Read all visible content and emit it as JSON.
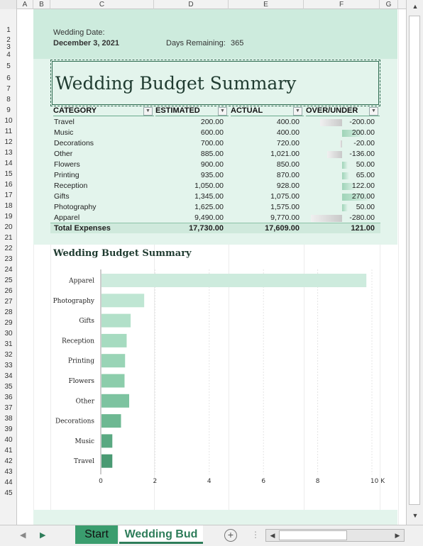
{
  "columns": [
    "A",
    "B",
    "C",
    "D",
    "E",
    "F",
    "G"
  ],
  "rows": [
    "1",
    "2",
    "3",
    "4",
    "5",
    "6",
    "7",
    "8",
    "9",
    "10",
    "11",
    "12",
    "13",
    "14",
    "15",
    "16",
    "17",
    "18",
    "19",
    "20",
    "21",
    "22",
    "23",
    "24",
    "25",
    "26",
    "27",
    "28",
    "29",
    "30",
    "31",
    "32",
    "33",
    "34",
    "35",
    "36",
    "37",
    "38",
    "39",
    "40",
    "41",
    "42",
    "43",
    "44",
    "45"
  ],
  "header": {
    "wedding_date_label": "Wedding Date:",
    "wedding_date": "December 3, 2021",
    "days_remaining_label": "Days Remaining:",
    "days_remaining": "365"
  },
  "title": "Wedding Budget Summary",
  "table": {
    "headers": [
      "CATEGORY",
      "ESTIMATED",
      "ACTUAL",
      "OVER/UNDER"
    ],
    "rows": [
      {
        "category": "Travel",
        "estimated": "200.00",
        "actual": "400.00",
        "over_under": "-200.00"
      },
      {
        "category": "Music",
        "estimated": "600.00",
        "actual": "400.00",
        "over_under": "200.00"
      },
      {
        "category": "Decorations",
        "estimated": "700.00",
        "actual": "720.00",
        "over_under": "-20.00"
      },
      {
        "category": "Other",
        "estimated": "885.00",
        "actual": "1,021.00",
        "over_under": "-136.00"
      },
      {
        "category": "Flowers",
        "estimated": "900.00",
        "actual": "850.00",
        "over_under": "50.00"
      },
      {
        "category": "Printing",
        "estimated": "935.00",
        "actual": "870.00",
        "over_under": "65.00"
      },
      {
        "category": "Reception",
        "estimated": "1,050.00",
        "actual": "928.00",
        "over_under": "122.00"
      },
      {
        "category": "Gifts",
        "estimated": "1,345.00",
        "actual": "1,075.00",
        "over_under": "270.00"
      },
      {
        "category": "Photography",
        "estimated": "1,625.00",
        "actual": "1,575.00",
        "over_under": "50.00"
      },
      {
        "category": "Apparel",
        "estimated": "9,490.00",
        "actual": "9,770.00",
        "over_under": "-280.00"
      }
    ],
    "total": {
      "label": "Total Expenses",
      "estimated": "17,730.00",
      "actual": "17,609.00",
      "over_under": "121.00"
    }
  },
  "chart_title": "Wedding Budget Summary",
  "chart_data": {
    "type": "bar",
    "orientation": "horizontal",
    "title": "Wedding Budget Summary",
    "categories": [
      "Apparel",
      "Photography",
      "Gifts",
      "Reception",
      "Printing",
      "Flowers",
      "Other",
      "Decorations",
      "Music",
      "Travel"
    ],
    "values": [
      9.77,
      1.575,
      1.075,
      0.928,
      0.87,
      0.85,
      1.021,
      0.72,
      0.4,
      0.4
    ],
    "xlim": [
      0,
      10
    ],
    "xticks": [
      "0",
      "2",
      "4",
      "6",
      "8",
      "10 K"
    ],
    "grid": true,
    "colors": [
      "#cdebdd",
      "#bfe6d3",
      "#b2e0c9",
      "#a6dbc0",
      "#99d4b6",
      "#8ccdab",
      "#7dc3a0",
      "#6db892",
      "#5aa982",
      "#4a9a73"
    ]
  },
  "sheet_tabs": [
    "Start",
    "Wedding Budget Summary"
  ],
  "tab_visible_label": "Wedding Bud",
  "icons": {
    "add_sheet": "+",
    "nav_next": "▶",
    "nav_prev": "◀",
    "scroll_up": "▲",
    "scroll_down": "▼"
  }
}
